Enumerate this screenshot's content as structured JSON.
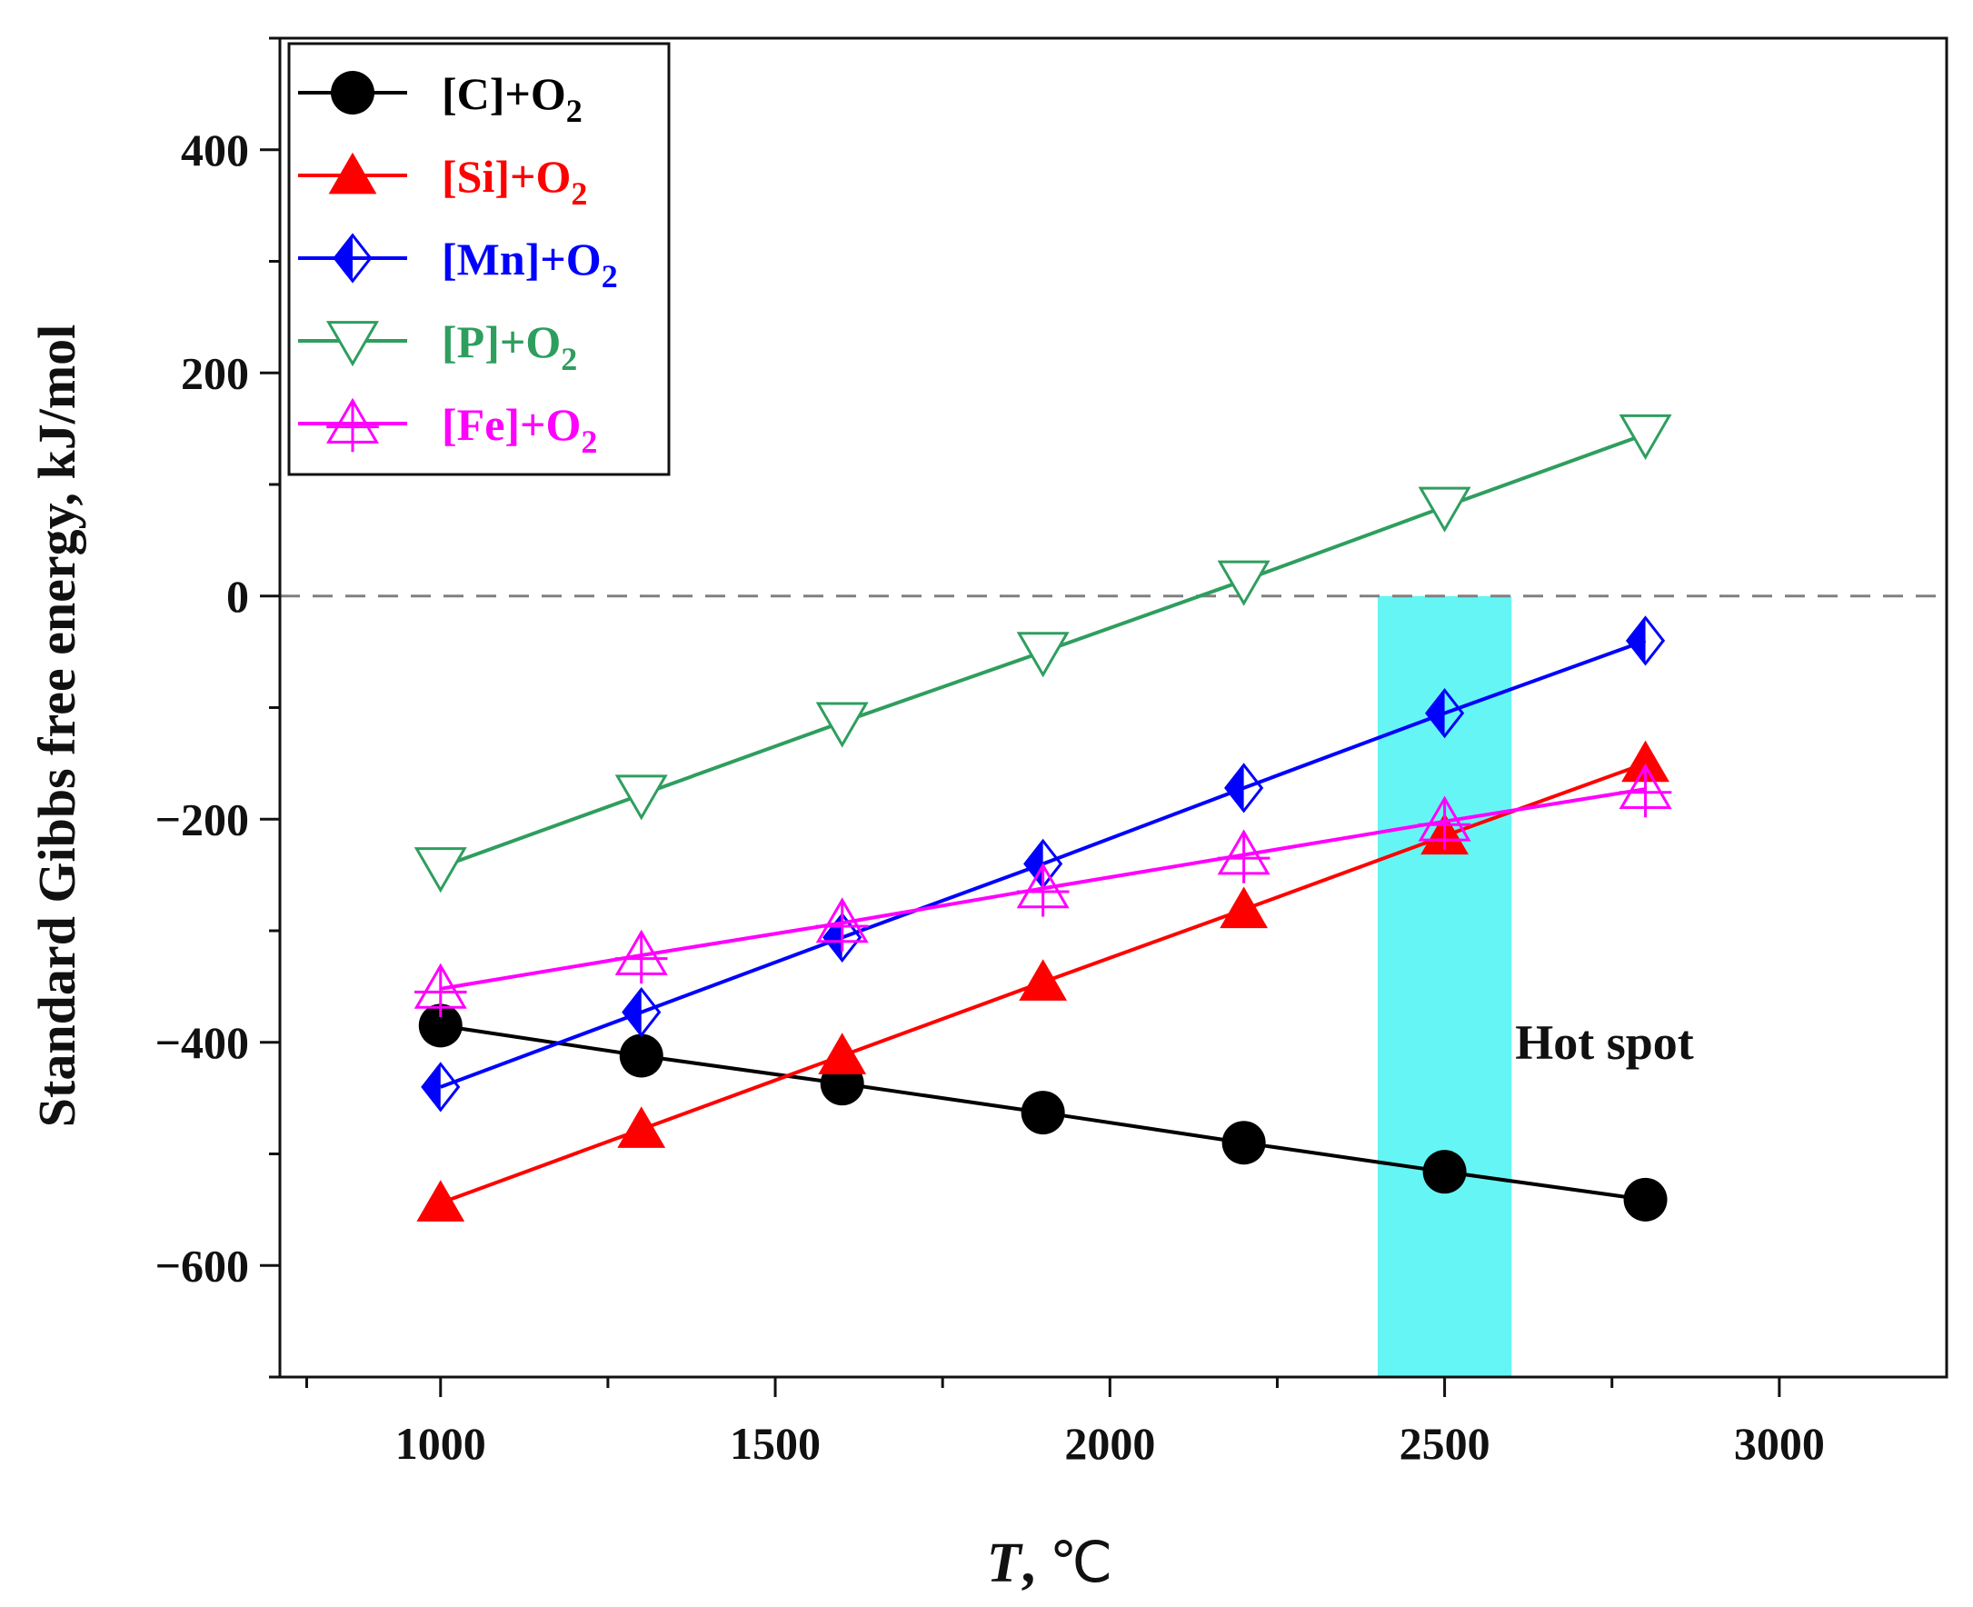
{
  "chart_data": {
    "type": "line",
    "title": "",
    "xlabel": {
      "symbol": "T",
      "unit": "℃"
    },
    "ylabel": "Standard Gibbs free energy, kJ/mol",
    "xlim": [
      760,
      3250
    ],
    "ylim": [
      -700,
      500
    ],
    "xticks": [
      1000,
      1500,
      2000,
      2500,
      3000
    ],
    "xtick_labels": [
      "1000",
      "1500",
      "2000",
      "2500",
      "3000"
    ],
    "yticks": [
      -600,
      -400,
      -200,
      0,
      200,
      400
    ],
    "ytick_labels": [
      "−600",
      "−400",
      "−200",
      "0",
      "200",
      "400"
    ],
    "x": [
      1000,
      1300,
      1600,
      1900,
      2200,
      2500,
      2800
    ],
    "series": [
      {
        "name": "[C]+O₂",
        "base": "[C]+O",
        "sub": "2",
        "color": "#000000",
        "marker": "filled-circle",
        "values": [
          -385,
          -412,
          -437,
          -463,
          -490,
          -516,
          -541
        ]
      },
      {
        "name": "[Si]+O₂",
        "base": "[Si]+O",
        "sub": "2",
        "color": "#ff0000",
        "marker": "filled-triangle-up",
        "values": [
          -544,
          -478,
          -412,
          -346,
          -281,
          -215,
          -150
        ]
      },
      {
        "name": "[Mn]+O₂",
        "base": "[Mn]+O",
        "sub": "2",
        "color": "#0000ff",
        "marker": "half-filled-diamond",
        "values": [
          -440,
          -373,
          -306,
          -240,
          -172,
          -105,
          -40
        ]
      },
      {
        "name": "[P]+O₂",
        "base": "[P]+O",
        "sub": "2",
        "color": "#2e9e5e",
        "marker": "open-triangle-down",
        "values": [
          -243,
          -178,
          -113,
          -50,
          14,
          80,
          145
        ]
      },
      {
        "name": "[Fe]+O₂",
        "base": "[Fe]+O",
        "sub": "2",
        "color": "#ff00ff",
        "marker": "open-triangle-up-cross",
        "values": [
          -352,
          -322,
          -293,
          -262,
          -232,
          -202,
          -173
        ]
      }
    ],
    "reference_line": {
      "y": 0,
      "style": "dashed",
      "color": "#808080"
    },
    "highlight_band": {
      "x_range": [
        2400,
        2600
      ],
      "y_range": [
        -700,
        0
      ],
      "color": "#66f5f5",
      "label": "Hot spot"
    },
    "legend": {
      "placement": "top-left"
    },
    "grid": false
  }
}
